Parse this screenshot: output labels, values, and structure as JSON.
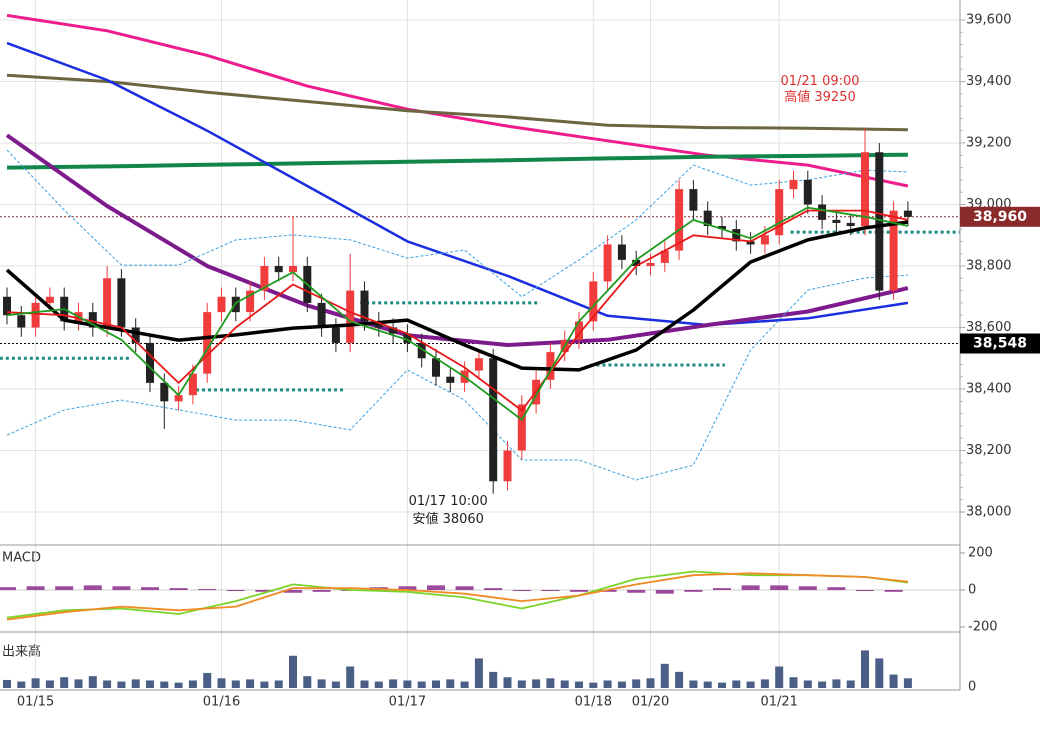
{
  "chart_data": {
    "type": "candlestick",
    "ylim": [
      37909,
      39665
    ],
    "yticks": [
      {
        "value": 38000,
        "label": "38,000"
      },
      {
        "value": 38200,
        "label": "38,200"
      },
      {
        "value": 38400,
        "label": "38,400"
      },
      {
        "value": 38600,
        "label": "38,600"
      },
      {
        "value": 38800,
        "label": "38,800"
      },
      {
        "value": 39000,
        "label": "39,000"
      },
      {
        "value": 39200,
        "label": "39,200"
      },
      {
        "value": 39400,
        "label": "39,400"
      },
      {
        "value": 39600,
        "label": "39,600"
      }
    ],
    "xticks": [
      {
        "value": 2,
        "label": "01/15"
      },
      {
        "value": 15,
        "label": "01/16"
      },
      {
        "value": 28,
        "label": "01/17"
      },
      {
        "value": 41,
        "label": "01/18"
      },
      {
        "value": 45,
        "label": "01/20"
      },
      {
        "value": 54,
        "label": "01/21"
      }
    ],
    "grid": true,
    "up_color": "#f03c3c",
    "down_color": "#222222",
    "open": [
      38700,
      38640,
      38600,
      38680,
      38700,
      38620,
      38650,
      38600,
      38760,
      38600,
      38550,
      38420,
      38360,
      38380,
      38450,
      38650,
      38700,
      38650,
      38720,
      38800,
      38780,
      38800,
      38680,
      38600,
      38550,
      38720,
      38620,
      38600,
      38580,
      38550,
      38500,
      38440,
      38420,
      38460,
      38500,
      38100,
      38200,
      38350,
      38430,
      38520,
      38560,
      38620,
      38750,
      38870,
      38820,
      38800,
      38810,
      38850,
      39050,
      38980,
      38930,
      38920,
      38880,
      38870,
      38900,
      39050,
      39080,
      39000,
      38950,
      38940,
      38930,
      39170,
      38720,
      38980
    ],
    "high": [
      38730,
      38670,
      38710,
      38730,
      38730,
      38680,
      38680,
      38800,
      38790,
      38630,
      38580,
      38450,
      38410,
      38480,
      38680,
      38730,
      38730,
      38750,
      38830,
      38830,
      38960,
      38830,
      38710,
      38630,
      38840,
      38750,
      38650,
      38630,
      38610,
      38580,
      38530,
      38470,
      38490,
      38530,
      38530,
      38230,
      38380,
      38460,
      38550,
      38590,
      38650,
      38780,
      38900,
      38900,
      38850,
      38840,
      38880,
      39080,
      39080,
      39010,
      38960,
      38950,
      38910,
      38930,
      39080,
      39110,
      39110,
      39030,
      38980,
      38970,
      39250,
      39200,
      39010,
      39010
    ],
    "low": [
      38610,
      38570,
      38570,
      38650,
      38590,
      38590,
      38570,
      38570,
      38570,
      38520,
      38390,
      38270,
      38330,
      38350,
      38420,
      38620,
      38620,
      38620,
      38690,
      38750,
      38750,
      38650,
      38570,
      38520,
      38520,
      38590,
      38570,
      38550,
      38520,
      38470,
      38410,
      38390,
      38390,
      38430,
      38060,
      38070,
      38170,
      38320,
      38400,
      38490,
      38530,
      38590,
      38720,
      38790,
      38770,
      38770,
      38780,
      38820,
      38950,
      38900,
      38890,
      38850,
      38840,
      38840,
      38870,
      39020,
      38970,
      38920,
      38910,
      38900,
      38900,
      38690,
      38690,
      38930
    ],
    "close": [
      38640,
      38600,
      38680,
      38700,
      38620,
      38650,
      38600,
      38760,
      38600,
      38550,
      38420,
      38360,
      38380,
      38450,
      38650,
      38700,
      38650,
      38720,
      38800,
      38780,
      38800,
      38680,
      38600,
      38550,
      38720,
      38620,
      38600,
      38580,
      38550,
      38500,
      38440,
      38420,
      38460,
      38500,
      38100,
      38200,
      38350,
      38430,
      38520,
      38560,
      38620,
      38750,
      38870,
      38820,
      38800,
      38810,
      38850,
      39050,
      38980,
      38930,
      38920,
      38880,
      38870,
      38900,
      39050,
      39080,
      39000,
      38950,
      38940,
      38930,
      39170,
      38720,
      38980,
      38960
    ],
    "lines": [
      {
        "color": "#ee1c8c",
        "width": 3,
        "x": [
          0,
          7,
          14,
          21,
          28,
          35,
          42,
          49,
          56,
          63
        ],
        "values": [
          39615,
          39565,
          39485,
          39385,
          39310,
          39255,
          39207,
          39160,
          39128,
          39060
        ]
      },
      {
        "color": "#6b6540",
        "width": 3,
        "x": [
          0,
          7,
          14,
          21,
          28,
          35,
          42,
          49,
          56,
          63
        ],
        "values": [
          39420,
          39400,
          39365,
          39335,
          39305,
          39285,
          39258,
          39250,
          39248,
          39243
        ]
      },
      {
        "color": "#12864a",
        "width": 4,
        "x": [
          0,
          7,
          14,
          21,
          28,
          35,
          42,
          49,
          56,
          63
        ],
        "values": [
          39120,
          39124,
          39129,
          39134,
          39139,
          39144,
          39150,
          39155,
          39158,
          39162
        ]
      },
      {
        "color": "#1a2ee0",
        "width": 2.5,
        "x": [
          0,
          7,
          14,
          21,
          28,
          35,
          42,
          49,
          56,
          63
        ],
        "values": [
          39525,
          39405,
          39240,
          39060,
          38880,
          38768,
          38638,
          38608,
          38630,
          38680
        ]
      },
      {
        "color": "#7d1a8c",
        "width": 4,
        "x": [
          0,
          7,
          14,
          21,
          28,
          35,
          42,
          49,
          56,
          63
        ],
        "values": [
          39225,
          38995,
          38800,
          38672,
          38575,
          38543,
          38560,
          38608,
          38652,
          38728
        ]
      },
      {
        "color": "#3aa0e0",
        "width": 1,
        "dashed": true,
        "x": [
          0,
          4,
          8,
          12,
          16,
          20,
          24,
          28,
          32,
          36,
          40,
          44,
          48,
          52,
          56,
          60,
          63
        ],
        "values": [
          39177,
          38982,
          38803,
          38803,
          38885,
          38901,
          38885,
          38826,
          38852,
          38700,
          38820,
          38950,
          39128,
          39063,
          39080,
          39112,
          39106
        ]
      },
      {
        "color": "#3aa0e0",
        "width": 1,
        "dashed": true,
        "x": [
          0,
          4,
          8,
          12,
          16,
          20,
          24,
          28,
          32,
          36,
          40,
          44,
          48,
          52,
          56,
          60,
          63
        ],
        "values": [
          38250,
          38332,
          38364,
          38332,
          38299,
          38299,
          38267,
          38462,
          38364,
          38169,
          38169,
          38104,
          38153,
          38527,
          38722,
          38761,
          38770
        ]
      },
      {
        "color": "#000000",
        "width": 3.5,
        "x": [
          0,
          4,
          8,
          12,
          16,
          20,
          24,
          28,
          32,
          36,
          40,
          44,
          48,
          52,
          56,
          60,
          63
        ],
        "values": [
          38787,
          38624,
          38592,
          38559,
          38576,
          38598,
          38608,
          38624,
          38543,
          38468,
          38462,
          38527,
          38657,
          38813,
          38885,
          38924,
          38943
        ]
      },
      {
        "color": "#e81818",
        "width": 1.8,
        "x": [
          0,
          4,
          8,
          12,
          16,
          20,
          24,
          28,
          32,
          36,
          40,
          44,
          48,
          52,
          56,
          60,
          63
        ],
        "values": [
          38650,
          38640,
          38600,
          38420,
          38600,
          38740,
          38650,
          38580,
          38470,
          38330,
          38580,
          38800,
          38900,
          38880,
          38980,
          38980,
          38950
        ]
      },
      {
        "color": "#1e9a1e",
        "width": 1.8,
        "x": [
          0,
          4,
          8,
          12,
          16,
          20,
          24,
          28,
          32,
          36,
          40,
          44,
          48,
          52,
          56,
          60,
          63
        ],
        "values": [
          38640,
          38660,
          38560,
          38380,
          38680,
          38780,
          38620,
          38560,
          38440,
          38300,
          38620,
          38820,
          38950,
          38890,
          38990,
          38960,
          38930
        ]
      }
    ],
    "levels": [
      {
        "value": 38680,
        "x": [
          24.7,
          37.3
        ]
      },
      {
        "value": 38500,
        "x": [
          -0.5,
          8.6
        ]
      },
      {
        "value": 38397,
        "x": [
          12.8,
          23.6
        ]
      },
      {
        "value": 38478,
        "x": [
          40.8,
          50.2
        ]
      },
      {
        "value": 38910,
        "x": [
          54.8,
          66.6
        ]
      }
    ],
    "level_color": "#1a8a80",
    "price_markers": [
      {
        "value": 38960,
        "label": "38,960",
        "color": "#8a2a2a"
      },
      {
        "value": 38548,
        "label": "38,548",
        "color": "#000000"
      }
    ],
    "annotations": [
      {
        "text": "01/21 09:00",
        "text2": "高値 39250",
        "x": 60,
        "value": 39250,
        "color": "#e03030"
      },
      {
        "text": "01/17 10:00",
        "text2": "安値 38060",
        "x": 34,
        "value": 38060,
        "color": "#222222"
      }
    ],
    "macd": {
      "label": "MACD",
      "ylim": [
        -227,
        243
      ],
      "yticks": [
        200,
        0,
        -200
      ],
      "histogram": {
        "color": "#8b2a8b",
        "x": [
          0,
          2,
          4,
          6,
          8,
          10,
          12,
          14,
          16,
          18,
          20,
          22,
          24,
          26,
          28,
          30,
          32,
          34,
          36,
          38,
          40,
          42,
          44,
          46,
          48,
          50,
          52,
          54,
          56,
          58,
          60,
          62
        ],
        "values": [
          15,
          20,
          20,
          25,
          20,
          15,
          10,
          5,
          -5,
          -10,
          -15,
          -10,
          0,
          15,
          20,
          25,
          20,
          10,
          0,
          -5,
          -10,
          -10,
          -15,
          -20,
          -10,
          10,
          25,
          25,
          20,
          15,
          -5,
          -10
        ]
      },
      "lines": [
        {
          "color": "#7cd32a",
          "x": [
            0,
            4,
            8,
            12,
            16,
            20,
            24,
            28,
            32,
            36,
            40,
            44,
            48,
            52,
            56,
            60,
            63
          ],
          "values": [
            -150,
            -110,
            -100,
            -130,
            -60,
            30,
            0,
            -10,
            -40,
            -100,
            -30,
            60,
            100,
            80,
            80,
            70,
            40
          ]
        },
        {
          "color": "#f08a24",
          "x": [
            0,
            4,
            8,
            12,
            16,
            20,
            24,
            28,
            32,
            36,
            40,
            44,
            48,
            52,
            56,
            60,
            63
          ],
          "values": [
            -160,
            -120,
            -90,
            -110,
            -90,
            10,
            10,
            0,
            -20,
            -60,
            -30,
            30,
            80,
            90,
            80,
            70,
            45
          ]
        }
      ]
    },
    "volume": {
      "label": "出来高",
      "ylim": [
        0,
        80
      ],
      "yticks": [
        0
      ],
      "color": "#4a5e86",
      "values": [
        15,
        12,
        18,
        14,
        20,
        16,
        22,
        14,
        12,
        16,
        14,
        12,
        10,
        14,
        28,
        18,
        14,
        16,
        12,
        14,
        60,
        22,
        16,
        12,
        40,
        14,
        12,
        16,
        14,
        12,
        14,
        16,
        12,
        55,
        30,
        20,
        14,
        16,
        18,
        14,
        12,
        10,
        14,
        12,
        16,
        18,
        45,
        30,
        14,
        12,
        10,
        14,
        12,
        16,
        40,
        20,
        14,
        12,
        16,
        14,
        70,
        55,
        25,
        18
      ]
    }
  }
}
